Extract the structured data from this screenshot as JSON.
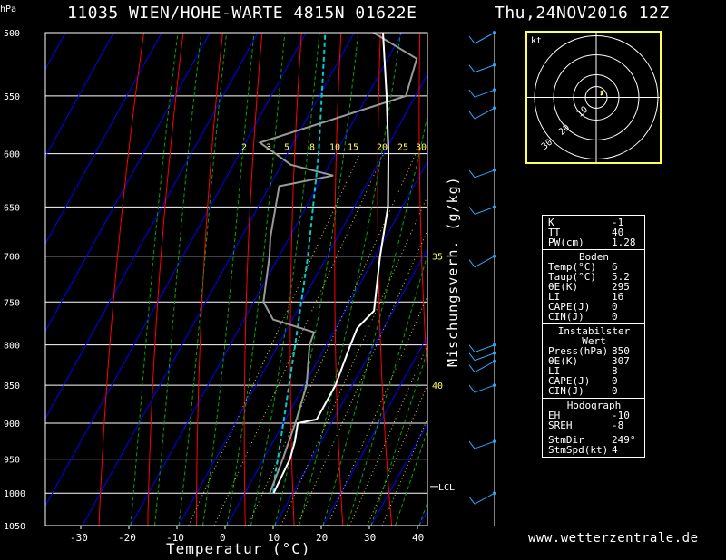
{
  "header": {
    "title": "11035 WIEN/HOHE-WARTE 4815N 01622E",
    "datetime": "Thu,24NOV2016 12Z",
    "y_unit": "hPa"
  },
  "footer": {
    "site": "www.wetterzentrale.de"
  },
  "colors": {
    "temp": "#ffffff",
    "dewpoint": "#999999",
    "isotherm": "#0000ff",
    "dry_adiabat": "#ff0000",
    "moist_adiabat": "#00aa00",
    "mixing_ratio": "#ffff55",
    "parcel": "#00cccc",
    "hodo_frame": "#ffff55"
  },
  "chart_data": {
    "type": "skew-t",
    "xlabel": "Temperatur (°C)",
    "mixing_ratio_label": "Mischungsverh. (g/kg)",
    "pressure_levels": [
      500,
      550,
      600,
      650,
      700,
      750,
      800,
      850,
      900,
      950,
      1000,
      1050
    ],
    "x_ticks": [
      -30,
      -20,
      -10,
      0,
      10,
      20,
      30,
      40
    ],
    "mixing_ratio_ticks": [
      "2",
      "3",
      "5",
      "8",
      "10",
      "15",
      "20",
      "25",
      "30"
    ],
    "mixing_ratio_ticks_right": [
      {
        "label": "30",
        "p": 600
      },
      {
        "label": "35",
        "p": 700
      },
      {
        "label": "40",
        "p": 850
      }
    ],
    "lcl_label": "LCL",
    "lcl_pressure": 990,
    "temperature": [
      {
        "p": 1000,
        "t": 6
      },
      {
        "p": 950,
        "t": 5.5
      },
      {
        "p": 925,
        "t": 4.5
      },
      {
        "p": 900,
        "t": 3
      },
      {
        "p": 895,
        "t": 6.5
      },
      {
        "p": 850,
        "t": 6.5
      },
      {
        "p": 800,
        "t": 5
      },
      {
        "p": 780,
        "t": 4.5
      },
      {
        "p": 760,
        "t": 6
      },
      {
        "p": 700,
        "t": 1
      },
      {
        "p": 650,
        "t": -3
      },
      {
        "p": 600,
        "t": -9
      },
      {
        "p": 550,
        "t": -16
      },
      {
        "p": 500,
        "t": -24
      }
    ],
    "dewpoint": [
      {
        "p": 1000,
        "t": 5.2
      },
      {
        "p": 950,
        "t": 4
      },
      {
        "p": 900,
        "t": 2.5
      },
      {
        "p": 850,
        "t": 0.5
      },
      {
        "p": 800,
        "t": -3.5
      },
      {
        "p": 785,
        "t": -4
      },
      {
        "p": 770,
        "t": -14
      },
      {
        "p": 750,
        "t": -18
      },
      {
        "p": 700,
        "t": -22
      },
      {
        "p": 680,
        "t": -24
      },
      {
        "p": 630,
        "t": -28
      },
      {
        "p": 620,
        "t": -18
      },
      {
        "p": 610,
        "t": -28
      },
      {
        "p": 590,
        "t": -37
      },
      {
        "p": 550,
        "t": -12
      },
      {
        "p": 520,
        "t": -14
      },
      {
        "p": 500,
        "t": -26
      }
    ],
    "parcel": [
      {
        "p": 1000,
        "t": 6
      },
      {
        "p": 990,
        "t": 5.2
      },
      {
        "p": 900,
        "t": 0
      },
      {
        "p": 800,
        "t": -6.5
      },
      {
        "p": 700,
        "t": -14
      },
      {
        "p": 600,
        "t": -23.5
      },
      {
        "p": 500,
        "t": -36
      }
    ],
    "wind_barbs": [
      500,
      525,
      545,
      560,
      615,
      650,
      700,
      800,
      810,
      820,
      850,
      925,
      1000
    ],
    "hodograph": {
      "label": "kt",
      "ring_labels": [
        "10",
        "20",
        "30"
      ],
      "points": [
        [
          0.9,
          0.3
        ],
        [
          1.2,
          0.5
        ],
        [
          1.4,
          0.1
        ],
        [
          1.0,
          -0.3
        ]
      ]
    }
  },
  "indices": {
    "general": [
      {
        "k": "K",
        "v": "-1"
      },
      {
        "k": "TT",
        "v": "40"
      },
      {
        "k": "PW(cm)",
        "v": "1.28"
      }
    ],
    "surface_title": "Boden",
    "surface": [
      {
        "k": "Temp(°C)",
        "v": "6"
      },
      {
        "k": "Taup(°C)",
        "v": "5.2"
      },
      {
        "k": "θE(K)",
        "v": "295"
      },
      {
        "k": "LI",
        "v": "16"
      },
      {
        "k": "CAPE(J)",
        "v": "0"
      },
      {
        "k": "CIN(J)",
        "v": "0"
      }
    ],
    "unstable_title": "Instabilster Wert",
    "unstable": [
      {
        "k": "Press(hPa)",
        "v": "850"
      },
      {
        "k": "θE(K)",
        "v": "307"
      },
      {
        "k": "LI",
        "v": "8"
      },
      {
        "k": "CAPE(J)",
        "v": "0"
      },
      {
        "k": "CIN(J)",
        "v": "0"
      }
    ],
    "hodograph_title": "Hodograph",
    "hodograph": [
      {
        "k": "EH",
        "v": "-10"
      },
      {
        "k": "SREH",
        "v": "-8"
      }
    ],
    "storm": [
      {
        "k": "StmDir",
        "v": "249°"
      },
      {
        "k": "StmSpd(kt)",
        "v": "4"
      }
    ]
  }
}
